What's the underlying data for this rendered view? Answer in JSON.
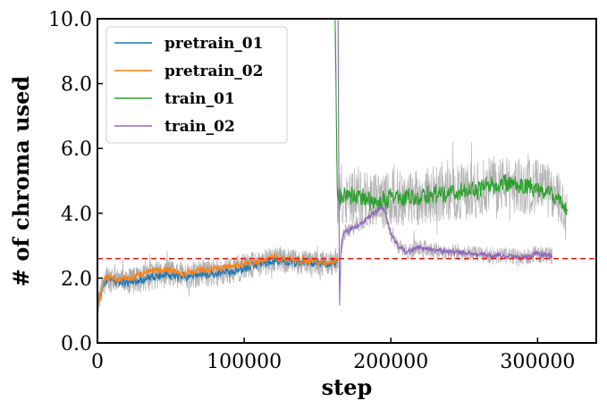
{
  "chart_data": {
    "type": "line",
    "xlabel": "step",
    "ylabel": "# of chroma used",
    "xlim": [
      0,
      340000
    ],
    "ylim": [
      0.0,
      10.0
    ],
    "x_ticks": [
      0,
      100000,
      200000,
      300000
    ],
    "x_tick_labels": [
      "0",
      "100000",
      "200000",
      "300000"
    ],
    "y_ticks": [
      0,
      2,
      4,
      6,
      8,
      10
    ],
    "y_tick_labels": [
      "0.0",
      "2.0",
      "4.0",
      "6.0",
      "8.0",
      "10.0"
    ],
    "grid": false,
    "legend_position": "upper-left",
    "reference_line": {
      "y": 2.6,
      "color": "#e3140f",
      "style": "dashed"
    },
    "raw_trace_color": "#aaaaaa",
    "series": [
      {
        "name": "pretrain_01",
        "color": "#1f77b4",
        "noise": 0.18,
        "x": [
          0,
          5000,
          10000,
          20000,
          30000,
          40000,
          50000,
          60000,
          70000,
          80000,
          90000,
          100000,
          110000,
          120000,
          130000,
          140000,
          150000,
          160000,
          164000
        ],
        "y": [
          1.2,
          1.9,
          1.95,
          1.85,
          1.95,
          2.05,
          2.1,
          2.05,
          2.1,
          2.1,
          2.2,
          2.3,
          2.4,
          2.55,
          2.5,
          2.5,
          2.45,
          2.45,
          2.55
        ]
      },
      {
        "name": "pretrain_02",
        "color": "#ff7f0e",
        "noise": 0.15,
        "x": [
          0,
          5000,
          10000,
          20000,
          30000,
          40000,
          50000,
          60000,
          70000,
          80000,
          90000,
          100000,
          110000,
          120000,
          130000,
          140000,
          150000,
          160000,
          164000
        ],
        "y": [
          1.1,
          2.0,
          2.0,
          1.95,
          2.1,
          2.25,
          2.2,
          2.15,
          2.25,
          2.3,
          2.35,
          2.45,
          2.5,
          2.65,
          2.6,
          2.55,
          2.5,
          2.5,
          2.55
        ]
      },
      {
        "name": "train_01",
        "color": "#2ca02c",
        "noise": 0.4,
        "x": [
          162000,
          163500,
          165000,
          170000,
          180000,
          190000,
          200000,
          210000,
          220000,
          230000,
          240000,
          250000,
          260000,
          270000,
          280000,
          290000,
          300000,
          310000,
          320000
        ],
        "y": [
          10.0,
          4.5,
          4.4,
          4.6,
          4.5,
          4.35,
          4.5,
          4.45,
          4.5,
          4.6,
          4.6,
          4.65,
          4.75,
          4.9,
          4.9,
          4.8,
          4.85,
          4.55,
          4.2
        ]
      },
      {
        "name": "train_02",
        "color": "#9467bd",
        "noise": 0.12,
        "x": [
          164000,
          165000,
          166000,
          168000,
          175000,
          185000,
          195000,
          200000,
          205000,
          210000,
          220000,
          230000,
          240000,
          250000,
          260000,
          270000,
          280000,
          290000,
          300000,
          310000
        ],
        "y": [
          10.0,
          1.1,
          2.9,
          3.4,
          3.55,
          3.9,
          4.2,
          3.4,
          3.0,
          2.8,
          2.95,
          2.85,
          2.8,
          2.78,
          2.72,
          2.7,
          2.68,
          2.62,
          2.75,
          2.7
        ]
      }
    ]
  }
}
